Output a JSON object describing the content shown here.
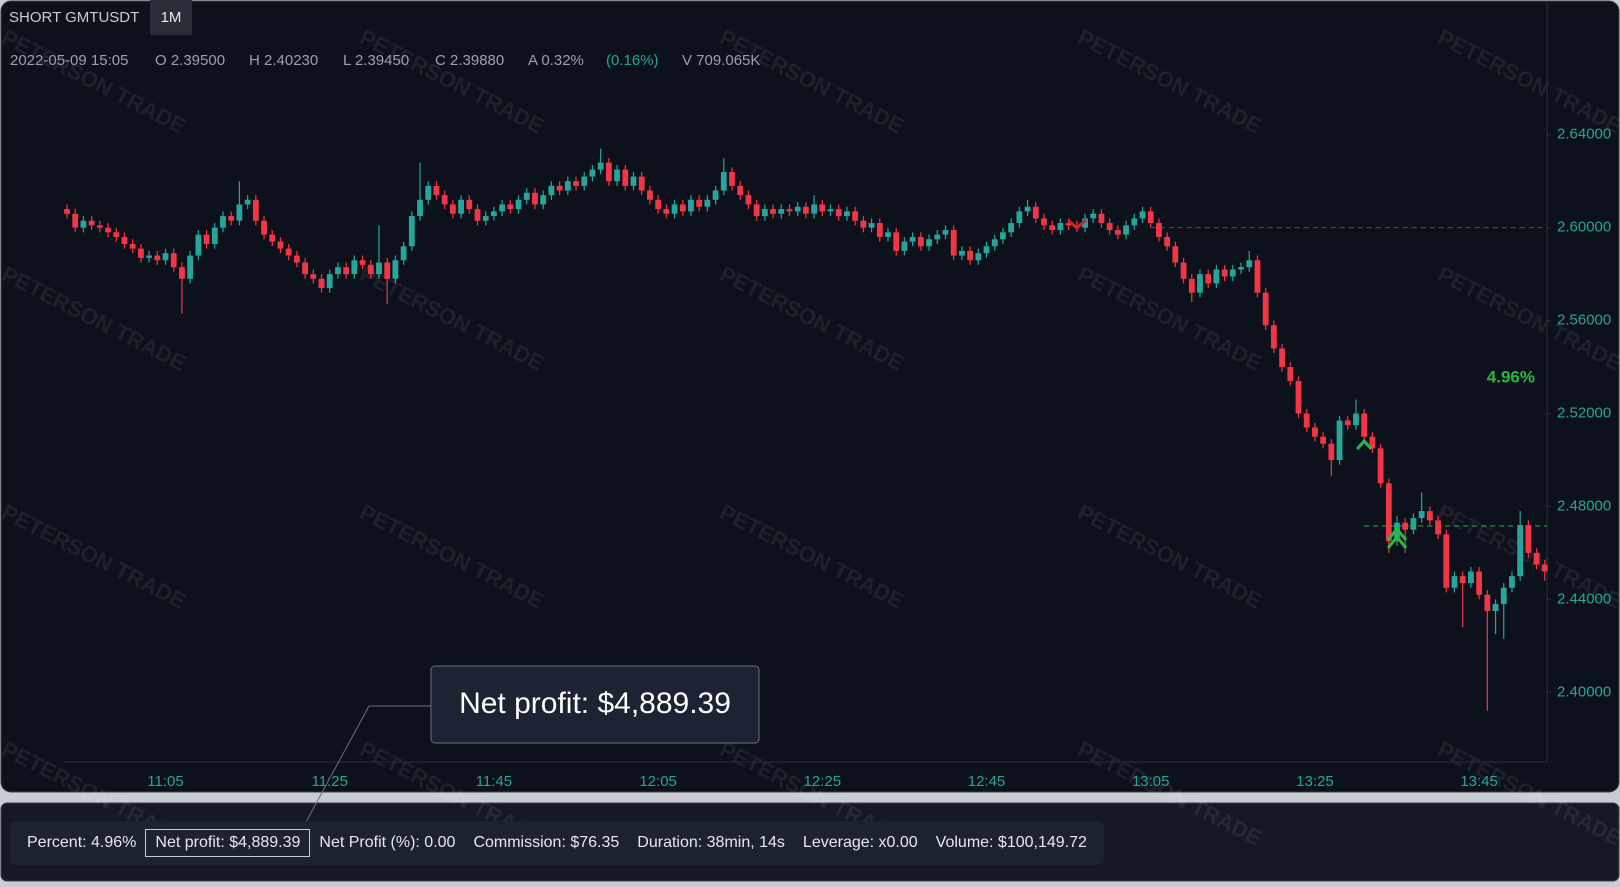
{
  "header": {
    "symbol": "SHORT GMTUSDT",
    "interval": "1M",
    "bar_info": [
      "2022-05-09 15:05",
      "O 2.39500",
      "H 2.40230",
      "L 2.39450",
      "C 2.39880",
      "A 0.32%",
      "(0.16%)",
      "V 709.065K"
    ]
  },
  "watermark": "PETERSON TRADE",
  "tooltip": "Net profit: $4,889.39",
  "stats": [
    "Percent: 4.96%",
    "Net profit: $4,889.39",
    "Net Profit (%): 0.00",
    "Commission: $76.35",
    "Duration: 38min, 14s",
    "Leverage: x0.00",
    "Volume: $100,149.72"
  ],
  "chart_data": {
    "type": "candlestick",
    "annotation": "4.96%",
    "up_color": "#26a69a",
    "down_color": "#f23645",
    "entry_price": 2.6,
    "exit_price": 2.4716,
    "ylim": [
      2.37,
      2.698
    ],
    "yticks": [
      {
        "value": 2.4,
        "label": "2.40000"
      },
      {
        "value": 2.44,
        "label": "2.44000"
      },
      {
        "value": 2.48,
        "label": "2.48000"
      },
      {
        "value": 2.52,
        "label": "2.52000"
      },
      {
        "value": 2.56,
        "label": "2.56000"
      },
      {
        "value": 2.6,
        "label": "2.60000"
      },
      {
        "value": 2.64,
        "label": "2.64000"
      }
    ],
    "grid": false,
    "categories": [
      null,
      null,
      null,
      null,
      null,
      null,
      null,
      null,
      null,
      null,
      null,
      null,
      "11:05",
      null,
      null,
      null,
      null,
      null,
      null,
      null,
      null,
      null,
      null,
      null,
      null,
      null,
      null,
      null,
      null,
      null,
      null,
      null,
      "11:25",
      null,
      null,
      null,
      null,
      null,
      null,
      null,
      null,
      null,
      null,
      null,
      null,
      null,
      null,
      null,
      null,
      null,
      null,
      null,
      "11:45",
      null,
      null,
      null,
      null,
      null,
      null,
      null,
      null,
      null,
      null,
      null,
      null,
      null,
      null,
      null,
      null,
      null,
      null,
      null,
      "12:05",
      null,
      null,
      null,
      null,
      null,
      null,
      null,
      null,
      null,
      null,
      null,
      null,
      null,
      null,
      null,
      null,
      null,
      null,
      null,
      "12:25",
      null,
      null,
      null,
      null,
      null,
      null,
      null,
      null,
      null,
      null,
      null,
      null,
      null,
      null,
      null,
      null,
      null,
      null,
      null,
      "12:45",
      null,
      null,
      null,
      null,
      null,
      null,
      null,
      null,
      null,
      null,
      null,
      null,
      null,
      null,
      null,
      null,
      null,
      null,
      null,
      "13:05",
      null,
      null,
      null,
      null,
      null,
      null,
      null,
      null,
      null,
      null,
      null,
      null,
      null,
      null,
      null,
      null,
      null,
      null,
      null,
      "13:25",
      null,
      null,
      null,
      null,
      null,
      null,
      null,
      null,
      null,
      null,
      null,
      null,
      null,
      null,
      null,
      null,
      null,
      null,
      null,
      "13:45",
      null,
      null,
      null,
      null,
      null,
      null,
      null,
      null
    ],
    "series": [
      {
        "name": "GMTUSDT",
        "open": [
          2.608,
          2.606,
          2.6,
          2.603,
          2.601,
          2.6,
          2.598,
          2.596,
          2.593,
          2.591,
          2.587,
          2.588,
          2.586,
          2.589,
          2.583,
          2.578,
          2.588,
          2.597,
          2.593,
          2.6,
          2.605,
          2.603,
          2.61,
          2.612,
          2.603,
          2.597,
          2.594,
          2.591,
          2.588,
          2.585,
          2.58,
          2.578,
          2.574,
          2.58,
          2.583,
          2.58,
          2.586,
          2.584,
          2.58,
          2.585,
          2.578,
          2.586,
          2.592,
          2.605,
          2.612,
          2.618,
          2.614,
          2.61,
          2.606,
          2.612,
          2.608,
          2.603,
          2.605,
          2.607,
          2.61,
          2.608,
          2.612,
          2.615,
          2.61,
          2.614,
          2.618,
          2.616,
          2.62,
          2.618,
          2.622,
          2.625,
          2.628,
          2.62,
          2.625,
          2.618,
          2.622,
          2.616,
          2.612,
          2.608,
          2.606,
          2.61,
          2.607,
          2.612,
          2.609,
          2.612,
          2.616,
          2.624,
          2.618,
          2.614,
          2.61,
          2.605,
          2.608,
          2.606,
          2.608,
          2.607,
          2.609,
          2.606,
          2.61,
          2.607,
          2.608,
          2.605,
          2.607,
          2.603,
          2.6,
          2.602,
          2.596,
          2.598,
          2.59,
          2.594,
          2.596,
          2.592,
          2.595,
          2.597,
          2.599,
          2.588,
          2.59,
          2.586,
          2.589,
          2.592,
          2.595,
          2.598,
          2.602,
          2.607,
          2.609,
          2.604,
          2.601,
          2.599,
          2.602,
          2.601,
          2.6,
          2.604,
          2.606,
          2.602,
          2.599,
          2.597,
          2.601,
          2.604,
          2.607,
          2.602,
          2.596,
          2.592,
          2.585,
          2.578,
          2.572,
          2.58,
          2.576,
          2.582,
          2.579,
          2.582,
          2.583,
          2.586,
          2.572,
          2.558,
          2.548,
          2.54,
          2.534,
          2.52,
          2.514,
          2.51,
          2.507,
          2.5,
          2.517,
          2.515,
          2.52,
          2.51,
          2.505,
          2.49,
          2.465,
          2.473,
          2.47,
          2.475,
          2.478,
          2.474,
          2.468,
          2.445,
          2.45,
          2.447,
          2.452,
          2.442,
          2.435,
          2.438,
          2.445,
          2.45,
          2.472,
          2.46,
          2.455
        ],
        "high": [
          2.61,
          2.608,
          2.605,
          2.605,
          2.603,
          2.602,
          2.6,
          2.598,
          2.595,
          2.593,
          2.59,
          2.59,
          2.591,
          2.591,
          2.585,
          2.59,
          2.599,
          2.599,
          2.602,
          2.607,
          2.607,
          2.62,
          2.614,
          2.614,
          2.605,
          2.599,
          2.596,
          2.593,
          2.59,
          2.587,
          2.582,
          2.58,
          2.582,
          2.585,
          2.585,
          2.588,
          2.588,
          2.586,
          2.601,
          2.587,
          2.588,
          2.594,
          2.607,
          2.628,
          2.62,
          2.62,
          2.616,
          2.612,
          2.614,
          2.614,
          2.61,
          2.607,
          2.609,
          2.612,
          2.612,
          2.614,
          2.617,
          2.617,
          2.616,
          2.62,
          2.62,
          2.622,
          2.622,
          2.624,
          2.627,
          2.634,
          2.63,
          2.627,
          2.627,
          2.624,
          2.624,
          2.618,
          2.614,
          2.61,
          2.612,
          2.612,
          2.614,
          2.614,
          2.614,
          2.618,
          2.63,
          2.626,
          2.62,
          2.616,
          2.612,
          2.61,
          2.61,
          2.61,
          2.61,
          2.611,
          2.611,
          2.614,
          2.612,
          2.61,
          2.61,
          2.609,
          2.609,
          2.605,
          2.604,
          2.604,
          2.6,
          2.6,
          2.596,
          2.598,
          2.598,
          2.597,
          2.599,
          2.601,
          2.601,
          2.592,
          2.592,
          2.591,
          2.594,
          2.597,
          2.6,
          2.604,
          2.609,
          2.612,
          2.611,
          2.606,
          2.603,
          2.604,
          2.604,
          2.603,
          2.606,
          2.608,
          2.608,
          2.604,
          2.601,
          2.603,
          2.606,
          2.609,
          2.609,
          2.604,
          2.598,
          2.594,
          2.587,
          2.58,
          2.582,
          2.582,
          2.584,
          2.584,
          2.584,
          2.585,
          2.59,
          2.588,
          2.574,
          2.56,
          2.55,
          2.542,
          2.536,
          2.522,
          2.516,
          2.512,
          2.509,
          2.519,
          2.519,
          2.526,
          2.522,
          2.512,
          2.507,
          2.492,
          2.476,
          2.475,
          2.477,
          2.486,
          2.48,
          2.476,
          2.47,
          2.452,
          2.452,
          2.454,
          2.454,
          2.444,
          2.44,
          2.447,
          2.452,
          2.478,
          2.474,
          2.462,
          2.457
        ],
        "low": [
          2.604,
          2.598,
          2.598,
          2.599,
          2.598,
          2.596,
          2.594,
          2.591,
          2.589,
          2.585,
          2.585,
          2.584,
          2.584,
          2.581,
          2.563,
          2.576,
          2.586,
          2.591,
          2.591,
          2.598,
          2.601,
          2.601,
          2.608,
          2.601,
          2.595,
          2.592,
          2.589,
          2.586,
          2.583,
          2.578,
          2.576,
          2.572,
          2.572,
          2.578,
          2.578,
          2.578,
          2.582,
          2.578,
          2.578,
          2.567,
          2.576,
          2.584,
          2.59,
          2.603,
          2.61,
          2.612,
          2.608,
          2.604,
          2.604,
          2.606,
          2.601,
          2.601,
          2.603,
          2.605,
          2.606,
          2.606,
          2.61,
          2.608,
          2.608,
          2.612,
          2.614,
          2.614,
          2.616,
          2.616,
          2.62,
          2.623,
          2.618,
          2.618,
          2.616,
          2.616,
          2.614,
          2.61,
          2.606,
          2.604,
          2.604,
          2.605,
          2.605,
          2.607,
          2.607,
          2.61,
          2.614,
          2.616,
          2.612,
          2.608,
          2.603,
          2.603,
          2.604,
          2.604,
          2.605,
          2.605,
          2.604,
          2.604,
          2.605,
          2.605,
          2.603,
          2.603,
          2.601,
          2.598,
          2.598,
          2.594,
          2.594,
          2.588,
          2.588,
          2.592,
          2.59,
          2.59,
          2.593,
          2.595,
          2.586,
          2.586,
          2.584,
          2.584,
          2.587,
          2.59,
          2.593,
          2.596,
          2.6,
          2.605,
          2.602,
          2.599,
          2.597,
          2.597,
          2.599,
          2.598,
          2.598,
          2.602,
          2.6,
          2.597,
          2.595,
          2.595,
          2.599,
          2.602,
          2.6,
          2.594,
          2.59,
          2.583,
          2.576,
          2.568,
          2.57,
          2.574,
          2.574,
          2.577,
          2.577,
          2.58,
          2.581,
          2.57,
          2.556,
          2.546,
          2.538,
          2.532,
          2.518,
          2.512,
          2.508,
          2.505,
          2.493,
          2.498,
          2.513,
          2.513,
          2.508,
          2.503,
          2.488,
          2.46,
          2.463,
          2.46,
          2.468,
          2.473,
          2.472,
          2.466,
          2.443,
          2.443,
          2.428,
          2.445,
          2.44,
          2.392,
          2.425,
          2.423,
          2.443,
          2.448,
          2.458,
          2.453,
          2.448
        ],
        "close": [
          2.606,
          2.6,
          2.603,
          2.601,
          2.6,
          2.598,
          2.596,
          2.593,
          2.591,
          2.587,
          2.588,
          2.586,
          2.589,
          2.583,
          2.578,
          2.588,
          2.597,
          2.593,
          2.6,
          2.605,
          2.603,
          2.61,
          2.612,
          2.603,
          2.597,
          2.594,
          2.591,
          2.588,
          2.585,
          2.58,
          2.578,
          2.574,
          2.58,
          2.583,
          2.58,
          2.586,
          2.584,
          2.58,
          2.585,
          2.578,
          2.586,
          2.592,
          2.605,
          2.612,
          2.618,
          2.614,
          2.61,
          2.606,
          2.612,
          2.608,
          2.603,
          2.605,
          2.607,
          2.61,
          2.608,
          2.612,
          2.615,
          2.61,
          2.614,
          2.618,
          2.616,
          2.62,
          2.618,
          2.622,
          2.625,
          2.628,
          2.62,
          2.625,
          2.618,
          2.622,
          2.616,
          2.612,
          2.608,
          2.606,
          2.61,
          2.607,
          2.612,
          2.609,
          2.612,
          2.616,
          2.624,
          2.618,
          2.614,
          2.61,
          2.605,
          2.608,
          2.606,
          2.608,
          2.607,
          2.609,
          2.606,
          2.61,
          2.607,
          2.608,
          2.605,
          2.607,
          2.603,
          2.6,
          2.602,
          2.596,
          2.598,
          2.59,
          2.594,
          2.596,
          2.592,
          2.595,
          2.597,
          2.599,
          2.588,
          2.59,
          2.586,
          2.589,
          2.592,
          2.595,
          2.598,
          2.602,
          2.607,
          2.609,
          2.604,
          2.601,
          2.599,
          2.602,
          2.601,
          2.6,
          2.604,
          2.606,
          2.602,
          2.599,
          2.597,
          2.601,
          2.604,
          2.607,
          2.602,
          2.596,
          2.592,
          2.585,
          2.578,
          2.572,
          2.58,
          2.576,
          2.582,
          2.579,
          2.582,
          2.583,
          2.586,
          2.572,
          2.558,
          2.548,
          2.54,
          2.534,
          2.52,
          2.514,
          2.51,
          2.507,
          2.5,
          2.517,
          2.515,
          2.52,
          2.51,
          2.505,
          2.49,
          2.465,
          2.473,
          2.47,
          2.475,
          2.478,
          2.474,
          2.468,
          2.445,
          2.45,
          2.447,
          2.452,
          2.442,
          2.435,
          2.438,
          2.445,
          2.45,
          2.472,
          2.46,
          2.455,
          2.452
        ]
      }
    ]
  }
}
